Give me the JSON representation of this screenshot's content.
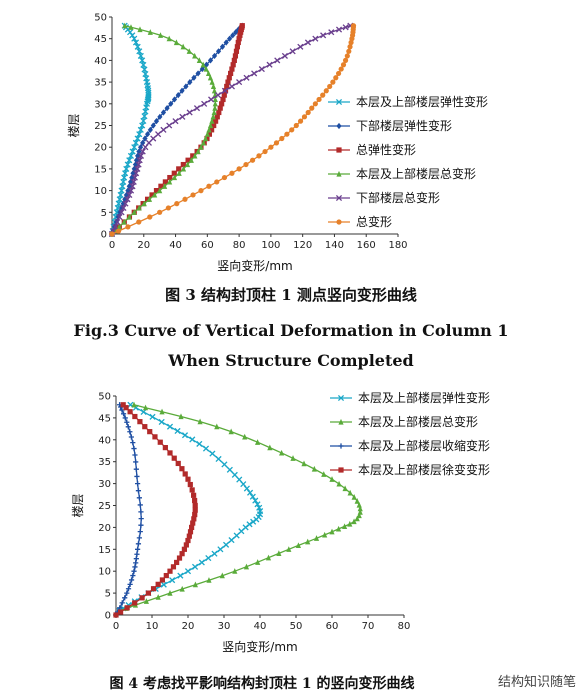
{
  "chart_data": [
    {
      "type": "line",
      "x_axis": {
        "label": "竖向变形/mm",
        "lim": [
          0,
          180
        ],
        "ticks": [
          "0",
          "20",
          "40",
          "60",
          "80",
          "100",
          "120",
          "140",
          "160",
          "180"
        ]
      },
      "y_axis": {
        "label": "楼层",
        "lim": [
          0,
          50
        ],
        "ticks": [
          "0",
          "5",
          "10",
          "15",
          "20",
          "25",
          "30",
          "35",
          "40",
          "45",
          "50"
        ]
      },
      "caption_cn": "图 3   结构封顶柱 1 测点竖向变形曲线",
      "caption_en_1": "Fig.3   Curve of Vertical Deformation in Column 1",
      "caption_en_2": "When Structure Completed",
      "legend_position": "right",
      "series": [
        {
          "name": "本层及上部楼层弹性变形",
          "color": "#1aa7c8",
          "marker": "x",
          "points": [
            [
              0,
              0
            ],
            [
              3,
              5
            ],
            [
              6,
              10
            ],
            [
              9,
              15
            ],
            [
              14,
              20
            ],
            [
              19,
              25
            ],
            [
              22,
              30
            ],
            [
              23,
              32
            ],
            [
              22,
              35
            ],
            [
              19,
              40
            ],
            [
              14,
              45
            ],
            [
              8,
              48
            ]
          ]
        },
        {
          "name": "下部楼层弹性变形",
          "color": "#1f4fa3",
          "marker": "diamond",
          "points": [
            [
              0,
              0
            ],
            [
              5,
              5
            ],
            [
              10,
              10
            ],
            [
              14,
              15
            ],
            [
              18,
              20
            ],
            [
              26,
              25
            ],
            [
              37,
              30
            ],
            [
              49,
              35
            ],
            [
              62,
              40
            ],
            [
              74,
              45
            ],
            [
              82,
              48
            ]
          ]
        },
        {
          "name": "总弹性变形",
          "color": "#b22a2a",
          "marker": "square",
          "points": [
            [
              0,
              0
            ],
            [
              14,
              5
            ],
            [
              28,
              10
            ],
            [
              42,
              15
            ],
            [
              56,
              20
            ],
            [
              64,
              25
            ],
            [
              69,
              30
            ],
            [
              73,
              35
            ],
            [
              77,
              40
            ],
            [
              80,
              45
            ],
            [
              82,
              48
            ]
          ]
        },
        {
          "name": "本层及上部楼层总变形",
          "color": "#5aab3a",
          "marker": "triangle",
          "points": [
            [
              0,
              0
            ],
            [
              14,
              5
            ],
            [
              30,
              10
            ],
            [
              45,
              15
            ],
            [
              56,
              20
            ],
            [
              62,
              25
            ],
            [
              65,
              30
            ],
            [
              63,
              35
            ],
            [
              55,
              40
            ],
            [
              36,
              45
            ],
            [
              8,
              48
            ]
          ]
        },
        {
          "name": "下部楼层总变形",
          "color": "#6a3f8e",
          "marker": "x",
          "points": [
            [
              0,
              0
            ],
            [
              6,
              5
            ],
            [
              12,
              10
            ],
            [
              16,
              15
            ],
            [
              21,
              20
            ],
            [
              36,
              25
            ],
            [
              58,
              30
            ],
            [
              80,
              35
            ],
            [
              104,
              40
            ],
            [
              128,
              45
            ],
            [
              150,
              48
            ]
          ]
        },
        {
          "name": "总变形",
          "color": "#e6812a",
          "marker": "circle",
          "points": [
            [
              0,
              0
            ],
            [
              30,
              5
            ],
            [
              56,
              10
            ],
            [
              80,
              15
            ],
            [
              100,
              20
            ],
            [
              116,
              25
            ],
            [
              128,
              30
            ],
            [
              139,
              35
            ],
            [
              147,
              40
            ],
            [
              151,
              45
            ],
            [
              152,
              48
            ]
          ]
        }
      ]
    },
    {
      "type": "line",
      "x_axis": {
        "label": "竖向变形/mm",
        "lim": [
          0,
          80
        ],
        "ticks": [
          "0",
          "10",
          "20",
          "30",
          "40",
          "50",
          "60",
          "70",
          "80"
        ]
      },
      "y_axis": {
        "label": "楼层",
        "lim": [
          0,
          50
        ],
        "ticks": [
          "0",
          "5",
          "10",
          "15",
          "20",
          "25",
          "30",
          "35",
          "40",
          "45",
          "50"
        ]
      },
      "caption_cn": "图 4   考虑找平影响结构封顶柱 1 的竖向变形曲线",
      "legend_position": "top-right",
      "series": [
        {
          "name": "本层及上部楼层弹性变形",
          "color": "#1aa7c8",
          "marker": "x",
          "points": [
            [
              1,
              1
            ],
            [
              9,
              5
            ],
            [
              20,
              10
            ],
            [
              29,
              15
            ],
            [
              36,
              20
            ],
            [
              40,
              23
            ],
            [
              38,
              27
            ],
            [
              33,
              32
            ],
            [
              25,
              38
            ],
            [
              15,
              43
            ],
            [
              4,
              48
            ]
          ]
        },
        {
          "name": "本层及上部楼层总变形",
          "color": "#5aab3a",
          "marker": "triangle",
          "points": [
            [
              1,
              1
            ],
            [
              15,
              5
            ],
            [
              33,
              10
            ],
            [
              48,
              15
            ],
            [
              60,
              19
            ],
            [
              67,
              22
            ],
            [
              67,
              26
            ],
            [
              60,
              31
            ],
            [
              46,
              37
            ],
            [
              28,
              43
            ],
            [
              5,
              48
            ]
          ]
        },
        {
          "name": "本层及上部楼层收缩变形",
          "color": "#1f4fa3",
          "marker": "plus",
          "points": [
            [
              0,
              0
            ],
            [
              3,
              5
            ],
            [
              5,
              10
            ],
            [
              6,
              15
            ],
            [
              7,
              22
            ],
            [
              6,
              30
            ],
            [
              5,
              38
            ],
            [
              3,
              44
            ],
            [
              1,
              48
            ]
          ]
        },
        {
          "name": "本层及上部楼层徐变变形",
          "color": "#b22a2a",
          "marker": "square",
          "points": [
            [
              0,
              0
            ],
            [
              9,
              5
            ],
            [
              15,
              10
            ],
            [
              19,
              15
            ],
            [
              21,
              20
            ],
            [
              22,
              25
            ],
            [
              20,
              31
            ],
            [
              15,
              37
            ],
            [
              8,
              43
            ],
            [
              2,
              48
            ]
          ]
        }
      ]
    }
  ],
  "watermark": "结构知识随笔"
}
